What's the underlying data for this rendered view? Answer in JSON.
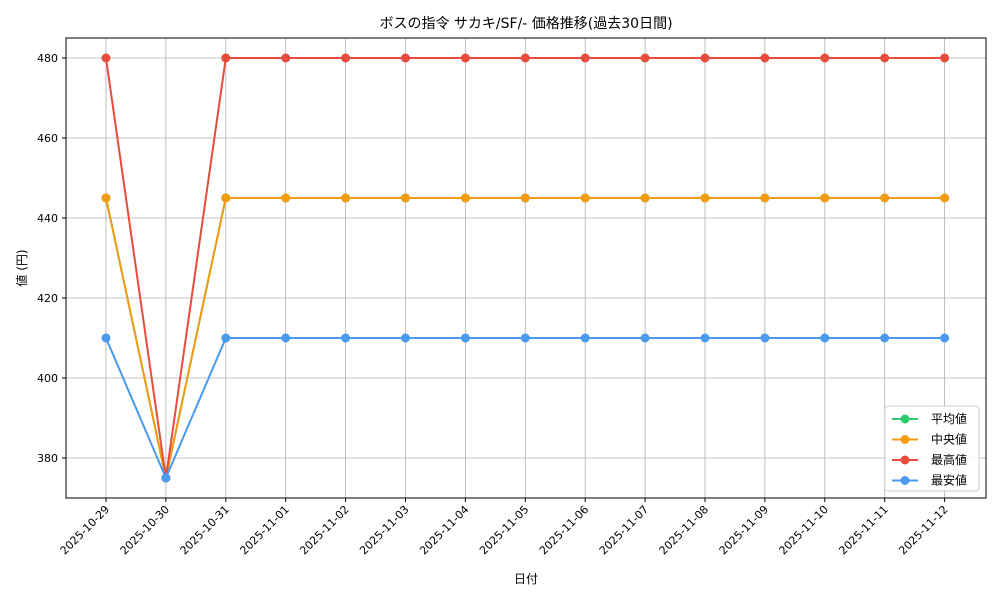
{
  "chart_data": {
    "type": "line",
    "title": "ボスの指令 サカキ/SF/- 価格推移(過去30日間)",
    "xlabel": "日付",
    "ylabel": "値 (円)",
    "x": [
      "2025-10-29",
      "2025-10-30",
      "2025-10-31",
      "2025-11-01",
      "2025-11-02",
      "2025-11-03",
      "2025-11-04",
      "2025-11-05",
      "2025-11-06",
      "2025-11-07",
      "2025-11-08",
      "2025-11-09",
      "2025-11-10",
      "2025-11-11",
      "2025-11-12"
    ],
    "ylim": [
      370,
      485
    ],
    "yticks": [
      380,
      400,
      420,
      440,
      460,
      480
    ],
    "grid": true,
    "legend_position": "lower-right",
    "series": [
      {
        "name": "平均値",
        "color": "#2ecc71",
        "values": [
          445,
          375,
          445,
          445,
          445,
          445,
          445,
          445,
          445,
          445,
          445,
          445,
          445,
          445,
          445
        ]
      },
      {
        "name": "中央値",
        "color": "#f39c12",
        "values": [
          445,
          375,
          445,
          445,
          445,
          445,
          445,
          445,
          445,
          445,
          445,
          445,
          445,
          445,
          445
        ]
      },
      {
        "name": "最高値",
        "color": "#e74c3c",
        "values": [
          480,
          375,
          480,
          480,
          480,
          480,
          480,
          480,
          480,
          480,
          480,
          480,
          480,
          480,
          480
        ]
      },
      {
        "name": "最安値",
        "color": "#4a9af0",
        "values": [
          410,
          375,
          410,
          410,
          410,
          410,
          410,
          410,
          410,
          410,
          410,
          410,
          410,
          410,
          410
        ]
      }
    ]
  }
}
